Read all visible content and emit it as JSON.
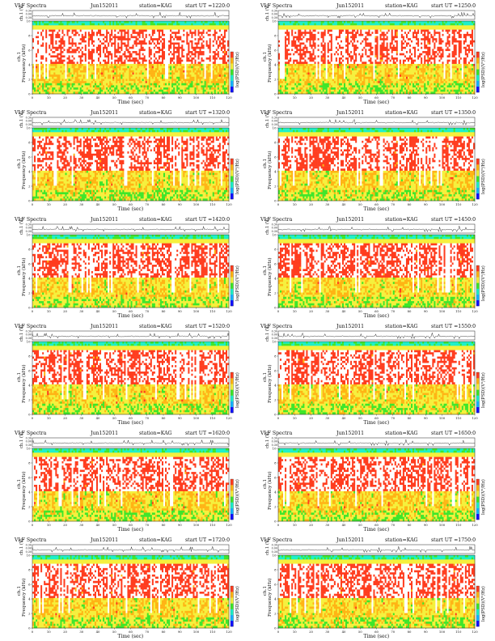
{
  "chart_data": {
    "type": "heatmap",
    "colormap": [
      "#1010ff",
      "#14b4ff",
      "#1cf0c8",
      "#3ee62a",
      "#f5f03c",
      "#ffb414",
      "#ff3c1e",
      "#ffffff"
    ],
    "panels": [
      {
        "prefix": "VLF Spectra",
        "date": "Jun152011",
        "station": "station=KAG",
        "start": "start  UT  =1220:0"
      },
      {
        "prefix": "VLF Spectra",
        "date": "Jun152011",
        "station": "station=KAG",
        "start": "start  UT  =1250:0"
      },
      {
        "prefix": "VLF Spectra",
        "date": "Jun152011",
        "station": "station=KAG",
        "start": "start  UT  =1320:0"
      },
      {
        "prefix": "VLF Spectra",
        "date": "Jun152011",
        "station": "station=KAG",
        "start": "start  UT  =1350:0"
      },
      {
        "prefix": "VLF Spectra",
        "date": "Jun152011",
        "station": "station=KAG",
        "start": "start  UT  =1420:0"
      },
      {
        "prefix": "VLF Spectra",
        "date": "Jun152011",
        "station": "station=KAG",
        "start": "start  UT  =1450:0"
      },
      {
        "prefix": "VLF Spectra",
        "date": "Jun152011",
        "station": "station=KAG",
        "start": "start  UT  =1520:0"
      },
      {
        "prefix": "VLF Spectra",
        "date": "Jun152011",
        "station": "station=KAG",
        "start": "start  UT  =1550:0"
      },
      {
        "prefix": "VLF Spectra",
        "date": "Jun152011",
        "station": "station=KAG",
        "start": "start  UT  =1620:0"
      },
      {
        "prefix": "VLF Spectra",
        "date": "Jun152011",
        "station": "station=KAG",
        "start": "start  UT  =1650:0"
      },
      {
        "prefix": "VLF Spectra",
        "date": "Jun152011",
        "station": "station=KAG",
        "start": "start  UT  =1720:0"
      },
      {
        "prefix": "VLF Spectra",
        "date": "Jun152011",
        "station": "station=KAG",
        "start": "start  UT  =1750:0"
      }
    ],
    "amp_axis": {
      "label": "ch.1 (V)",
      "ticks": [
        "0.30",
        "0.00",
        "0.30"
      ]
    },
    "freq_axis": {
      "label": "Frequency (kHz)",
      "channel": "ch.1",
      "ticks": [
        "0",
        "2",
        "4",
        "6",
        "8",
        "10"
      ],
      "ylim": [
        0,
        10
      ]
    },
    "time_axis": {
      "label": "Time  (sec)",
      "ticks": [
        "0",
        "10",
        "20",
        "30",
        "40",
        "50",
        "60",
        "70",
        "80",
        "90",
        "100",
        "110",
        "120"
      ],
      "xlim": [
        0,
        120
      ]
    },
    "colorbar": {
      "label": "log(PSD)(V²/Hz)",
      "ticks": [
        "-",
        "-"
      ]
    }
  }
}
